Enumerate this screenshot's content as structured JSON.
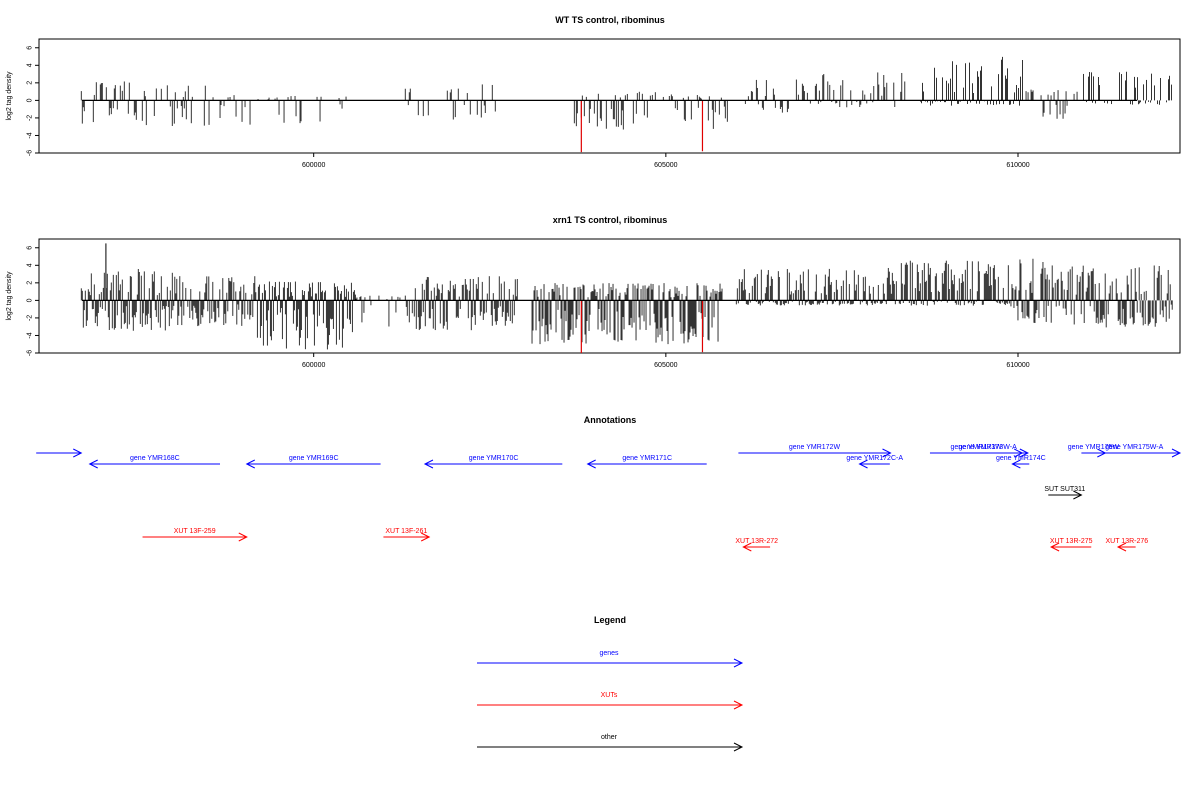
{
  "colors": {
    "axis": "#000000",
    "bar": "#000000",
    "highlight": "#e00000",
    "genes": "#0000ff",
    "xuts": "#ff0000",
    "other": "#000000"
  },
  "chart_data": [
    {
      "type": "bar",
      "title": "WT TS control, ribominus",
      "ylabel": "log2 tag density",
      "xlabel": "",
      "xlim": [
        596100,
        612300
      ],
      "ylim": [
        -6,
        7
      ],
      "yticks": [
        -6,
        -4,
        -2,
        0,
        2,
        4,
        6
      ],
      "xticks": [
        600000,
        605000,
        610000
      ],
      "grid": false,
      "highlight_bars": [
        {
          "x": 603800,
          "value": -5.9
        },
        {
          "x": 605520,
          "value": -5.8
        }
      ],
      "density_regions": [
        {
          "x_start": 596700,
          "x_end": 598500,
          "pos_max": 2.2,
          "neg_max": -3.0,
          "density": 0.35
        },
        {
          "x_start": 598500,
          "x_end": 600500,
          "pos_max": 0.6,
          "neg_max": -2.8,
          "density": 0.3
        },
        {
          "x_start": 601300,
          "x_end": 602700,
          "pos_max": 2.0,
          "neg_max": -2.2,
          "density": 0.25
        },
        {
          "x_start": 603700,
          "x_end": 605900,
          "pos_max": 1.0,
          "neg_max": -3.4,
          "density": 0.45
        },
        {
          "x_start": 606100,
          "x_end": 607200,
          "pos_max": 2.5,
          "neg_max": -1.4,
          "density": 0.4
        },
        {
          "x_start": 607200,
          "x_end": 608400,
          "pos_max": 3.2,
          "neg_max": -0.8,
          "density": 0.4
        },
        {
          "x_start": 608600,
          "x_end": 610100,
          "pos_max": 5.0,
          "neg_max": -0.6,
          "density": 0.65
        },
        {
          "x_start": 610100,
          "x_end": 610900,
          "pos_max": 1.6,
          "neg_max": -2.4,
          "density": 0.35
        },
        {
          "x_start": 610900,
          "x_end": 612200,
          "pos_max": 3.3,
          "neg_max": -0.5,
          "density": 0.4
        }
      ]
    },
    {
      "type": "bar",
      "title": "xrn1 TS control, ribominus",
      "ylabel": "log2 tag density",
      "xlabel": "",
      "xlim": [
        596100,
        612300
      ],
      "ylim": [
        -6,
        7
      ],
      "yticks": [
        -6,
        -4,
        -2,
        0,
        2,
        4,
        6
      ],
      "xticks": [
        600000,
        605000,
        610000
      ],
      "grid": false,
      "highlight_bars": [
        {
          "x": 603800,
          "value": -6.0
        },
        {
          "x": 605520,
          "value": -5.9
        }
      ],
      "density_regions": [
        {
          "x_start": 596700,
          "x_end": 598000,
          "pos_max": 3.6,
          "neg_max": -3.5,
          "density": 1.0
        },
        {
          "x_start": 598000,
          "x_end": 599200,
          "pos_max": 2.8,
          "neg_max": -3.0,
          "density": 0.85
        },
        {
          "x_start": 599200,
          "x_end": 600600,
          "pos_max": 2.2,
          "neg_max": -5.6,
          "density": 1.0
        },
        {
          "x_start": 600600,
          "x_end": 601300,
          "pos_max": 0.6,
          "neg_max": -3.0,
          "density": 0.4
        },
        {
          "x_start": 601300,
          "x_end": 602900,
          "pos_max": 2.8,
          "neg_max": -3.4,
          "density": 0.85
        },
        {
          "x_start": 603100,
          "x_end": 605800,
          "pos_max": 2.0,
          "neg_max": -5.0,
          "density": 1.0
        },
        {
          "x_start": 606000,
          "x_end": 608300,
          "pos_max": 3.7,
          "neg_max": -0.6,
          "density": 0.9
        },
        {
          "x_start": 608300,
          "x_end": 609900,
          "pos_max": 4.6,
          "neg_max": -0.6,
          "density": 0.9
        },
        {
          "x_start": 609900,
          "x_end": 610400,
          "pos_max": 5.0,
          "neg_max": -3.0,
          "density": 0.95
        },
        {
          "x_start": 610400,
          "x_end": 612200,
          "pos_max": 4.0,
          "neg_max": -3.2,
          "density": 0.9
        }
      ],
      "spikes": [
        {
          "x": 597050,
          "value": 6.5
        }
      ]
    }
  ],
  "annotations": {
    "title": "Annotations",
    "features": [
      {
        "label": "",
        "kind": "gene",
        "start": 596060,
        "end": 596700,
        "strand": "+",
        "row": 0
      },
      {
        "label": "gene YMR168C",
        "kind": "gene",
        "start": 596820,
        "end": 598670,
        "strand": "-",
        "row": 1
      },
      {
        "label": "gene YMR169C",
        "kind": "gene",
        "start": 599050,
        "end": 600950,
        "strand": "-",
        "row": 1
      },
      {
        "label": "gene YMR170C",
        "kind": "gene",
        "start": 601580,
        "end": 603530,
        "strand": "-",
        "row": 1
      },
      {
        "label": "gene YMR171C",
        "kind": "gene",
        "start": 603890,
        "end": 605580,
        "strand": "-",
        "row": 1
      },
      {
        "label": "gene YMR172W",
        "kind": "gene",
        "start": 606030,
        "end": 608190,
        "strand": "+",
        "row": 0
      },
      {
        "label": "gene YMR172C-A",
        "kind": "gene",
        "start": 607750,
        "end": 608180,
        "strand": "-",
        "row": 1
      },
      {
        "label": "gene YMR173W",
        "kind": "gene",
        "start": 608750,
        "end": 610060,
        "strand": "+",
        "row": 0
      },
      {
        "label": "gene YMR173W-A",
        "kind": "gene",
        "start": 609000,
        "end": 610140,
        "strand": "+",
        "row": 0
      },
      {
        "label": "gene YMR174C",
        "kind": "gene",
        "start": 609920,
        "end": 610160,
        "strand": "-",
        "row": 1
      },
      {
        "label": "gene YMR175W",
        "kind": "gene",
        "start": 610900,
        "end": 611240,
        "strand": "+",
        "row": 0
      },
      {
        "label": "gene YMR175W-A",
        "kind": "gene",
        "start": 611000,
        "end": 612300,
        "strand": "+",
        "row": 0
      },
      {
        "label": "SUT SUT311",
        "kind": "other",
        "start": 610430,
        "end": 610900,
        "strand": "+",
        "row": 2
      },
      {
        "label": "XUT 13F-259",
        "kind": "xut",
        "start": 597570,
        "end": 599050,
        "strand": "+",
        "row": 3
      },
      {
        "label": "XUT 13F-261",
        "kind": "xut",
        "start": 600990,
        "end": 601640,
        "strand": "+",
        "row": 3
      },
      {
        "label": "XUT 13R-272",
        "kind": "xut",
        "start": 606100,
        "end": 606480,
        "strand": "-",
        "row": 4
      },
      {
        "label": "XUT 13R-275",
        "kind": "xut",
        "start": 610470,
        "end": 611040,
        "strand": "-",
        "row": 4
      },
      {
        "label": "XUT 13R-276",
        "kind": "xut",
        "start": 611420,
        "end": 611670,
        "strand": "-",
        "row": 4
      }
    ]
  },
  "legend": {
    "title": "Legend",
    "items": [
      {
        "label": "genes",
        "kind": "gene"
      },
      {
        "label": "XUTs",
        "kind": "xut"
      },
      {
        "label": "other",
        "kind": "other"
      }
    ]
  }
}
